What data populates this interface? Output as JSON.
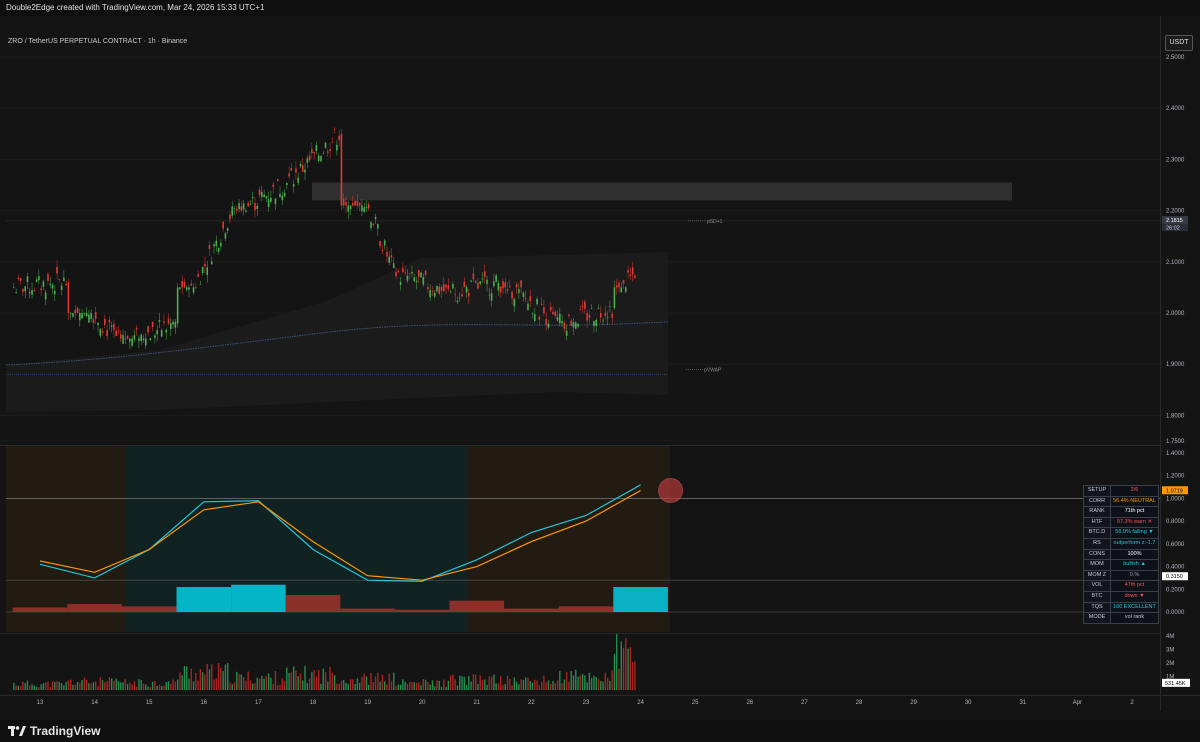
{
  "header": {
    "created_by": "Double2Edge created with TradingView.com, Mar 24, 2026 15:33 UTC+1"
  },
  "symbol_title": "ZRO / TetherUS PERPETUAL CONTRACT · 1h · Binance",
  "currency_button": "USDT",
  "branding": {
    "logo_text": "TradingView"
  },
  "price_panel": {
    "y_ticks": [
      "2.5000",
      "2.4000",
      "2.3000",
      "2.2000",
      "2.1000",
      "2.0000",
      "1.9000",
      "1.8000",
      "1.7500"
    ],
    "last_price": "2.1815",
    "countdown": "26:02",
    "line_labels": {
      "psd": "pSD+1",
      "pvwap": "pVWAP"
    }
  },
  "oscillator_panel": {
    "y_ticks": [
      "1.4000",
      "1.2000",
      "1.0000",
      "0.8000",
      "0.6000",
      "0.4000",
      "0.2000",
      "0.0000"
    ],
    "value_orange": "1.0719",
    "value_white": "0.3150"
  },
  "volume_panel": {
    "y_ticks": [
      "4M",
      "3M",
      "2M",
      "1M"
    ],
    "current_volume": "531.45K"
  },
  "x_axis": {
    "labels": [
      "13",
      "14",
      "15",
      "16",
      "17",
      "18",
      "19",
      "20",
      "21",
      "22",
      "23",
      "24",
      "25",
      "26",
      "27",
      "28",
      "29",
      "30",
      "31",
      "Apr",
      "2"
    ]
  },
  "stats_table": [
    {
      "key": "SETUP",
      "value": "2/6",
      "color": "#ff5252"
    },
    {
      "key": "CORR",
      "value": "56.4%  NEUTRAL",
      "color": "#ff9800"
    },
    {
      "key": "RANK",
      "value": "71th pct",
      "color": "#ffffff"
    },
    {
      "key": "HTF",
      "value": "97.3%  warn ✕",
      "color": "#ff5252"
    },
    {
      "key": "BTC.D",
      "value": "56.9%  falling ▼",
      "color": "#26c6da"
    },
    {
      "key": "RS",
      "value": "outperform z:-1.7",
      "color": "#26c6da"
    },
    {
      "key": "CONS",
      "value": "100%",
      "color": "#ffffff"
    },
    {
      "key": "MOM",
      "value": "bullish ▲",
      "color": "#26c6da"
    },
    {
      "key": "MOM Z",
      "value": "0.%",
      "color": "#9e9e9e"
    },
    {
      "key": "VOL",
      "value": "47th pct",
      "color": "#ff5252"
    },
    {
      "key": "BTC",
      "value": "down ▼",
      "color": "#ff5252"
    },
    {
      "key": "TQS",
      "value": "100  EXCELLENT",
      "color": "#26c6da"
    },
    {
      "key": "MODE",
      "value": "vol rank",
      "color": "#c6cbd4"
    }
  ],
  "chart_data": [
    {
      "type": "candlestick",
      "title": "ZRO / TetherUS PERPETUAL CONTRACT · 1h · Binance",
      "x": [
        "13",
        "14",
        "15",
        "16",
        "17",
        "18",
        "19",
        "20",
        "21",
        "22",
        "23",
        "24"
      ],
      "close": [
        2.06,
        1.94,
        1.98,
        2.19,
        2.25,
        2.35,
        2.08,
        2.04,
        2.06,
        1.98,
        2.01,
        2.18
      ],
      "high": [
        2.11,
        2.0,
        2.02,
        2.29,
        2.31,
        2.39,
        2.21,
        2.08,
        2.09,
        2.05,
        2.07,
        2.23
      ],
      "low": [
        1.99,
        1.92,
        1.95,
        2.05,
        2.2,
        2.25,
        2.03,
        2.0,
        1.96,
        1.92,
        1.88,
        2.05
      ],
      "last_price": 2.1815,
      "ylim": [
        1.75,
        2.5
      ],
      "pVWAP": 1.88,
      "pSD+1": 2.18,
      "resistance_zone": [
        2.22,
        2.255
      ],
      "grid": true
    },
    {
      "type": "line",
      "series": [
        {
          "color": "#26c6da",
          "values": [
            0.42,
            0.3,
            0.55,
            0.97,
            0.98,
            0.55,
            0.28,
            0.27,
            0.46,
            0.7,
            0.85,
            1.12
          ]
        },
        {
          "color": "#ff9800",
          "values": [
            0.45,
            0.35,
            0.55,
            0.9,
            0.97,
            0.62,
            0.32,
            0.28,
            0.4,
            0.62,
            0.8,
            1.07
          ]
        }
      ],
      "histogram_values": [
        0.04,
        0.07,
        0.05,
        0.22,
        0.24,
        0.15,
        0.03,
        0.02,
        0.1,
        0.03,
        0.05,
        0.22
      ],
      "x": [
        "13",
        "14",
        "15",
        "16",
        "17",
        "18",
        "19",
        "20",
        "21",
        "22",
        "23",
        "24"
      ],
      "ylim": [
        -0.1,
        1.45
      ]
    },
    {
      "type": "bar",
      "title": "Volume",
      "x": [
        "13",
        "14",
        "15",
        "16",
        "17",
        "18",
        "19",
        "20",
        "21",
        "22",
        "23",
        "24"
      ],
      "values": [
        0.6,
        0.8,
        0.7,
        1.7,
        1.2,
        1.5,
        1.1,
        0.7,
        1.0,
        0.9,
        1.3,
        3.6
      ],
      "ylim": [
        0,
        4
      ]
    }
  ]
}
